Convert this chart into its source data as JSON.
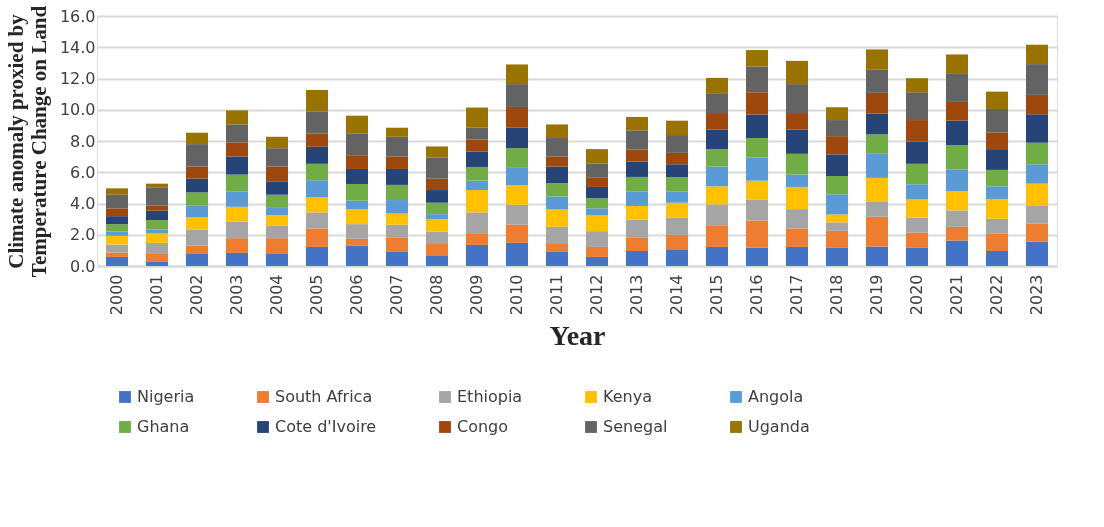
{
  "chart_data": {
    "type": "bar",
    "stacked": true,
    "xlabel": "Year",
    "ylabel": "Climate anomaly proxied by Temperature Change on Land",
    "categories": [
      "2000",
      "2001",
      "2002",
      "2003",
      "2004",
      "2005",
      "2006",
      "2007",
      "2008",
      "2009",
      "2010",
      "2011",
      "2012",
      "2013",
      "2014",
      "2015",
      "2016",
      "2017",
      "2018",
      "2019",
      "2020",
      "2021",
      "2022",
      "2023"
    ],
    "series": [
      {
        "name": "Nigeria",
        "color": "#4472c4",
        "values": [
          0.58,
          0.26,
          0.77,
          0.84,
          0.77,
          1.22,
          1.29,
          0.9,
          0.64,
          1.35,
          1.48,
          0.9,
          0.58,
          0.96,
          1.07,
          1.22,
          1.18,
          1.22,
          1.16,
          1.24,
          1.16,
          1.63,
          0.96,
          1.56
        ]
      },
      {
        "name": "South Africa",
        "color": "#ed7d31",
        "values": [
          0.28,
          0.51,
          0.54,
          0.94,
          1.01,
          1.18,
          0.45,
          0.9,
          0.77,
          0.75,
          1.16,
          0.51,
          0.64,
          0.84,
          0.92,
          1.39,
          1.73,
          1.18,
          1.09,
          1.91,
          0.98,
          0.88,
          1.1,
          1.16
        ]
      },
      {
        "name": "Ethiopia",
        "color": "#a5a5a5",
        "values": [
          0.51,
          0.71,
          1.03,
          1.07,
          0.79,
          1.03,
          0.94,
          0.84,
          0.78,
          1.33,
          1.28,
          1.1,
          1.01,
          1.16,
          1.12,
          1.33,
          1.35,
          1.24,
          0.54,
          0.99,
          0.95,
          1.05,
          0.96,
          1.12
        ]
      },
      {
        "name": "Kenya",
        "color": "#ffc000",
        "values": [
          0.56,
          0.6,
          0.77,
          0.94,
          0.69,
          0.96,
          0.96,
          0.72,
          0.81,
          1.43,
          1.24,
          1.11,
          1.01,
          0.88,
          0.94,
          1.16,
          1.2,
          1.42,
          0.51,
          1.5,
          1.17,
          1.24,
          1.27,
          1.43
        ]
      },
      {
        "name": "Angola",
        "color": "#5b9bd5",
        "values": [
          0.28,
          0.26,
          0.75,
          0.99,
          0.51,
          1.1,
          0.54,
          0.86,
          0.32,
          0.6,
          1.12,
          0.82,
          0.45,
          0.94,
          0.73,
          1.26,
          1.48,
          0.79,
          1.29,
          1.54,
          0.97,
          1.39,
          0.81,
          1.24
        ]
      },
      {
        "name": "Ghana",
        "color": "#70ad47",
        "values": [
          0.47,
          0.6,
          0.85,
          1.07,
          0.79,
          1.05,
          1.07,
          0.97,
          0.73,
          0.88,
          1.26,
          0.87,
          0.64,
          0.92,
          0.9,
          1.12,
          1.25,
          1.33,
          1.17,
          1.24,
          1.31,
          1.55,
          1.05,
          1.38
        ]
      },
      {
        "name": "Cote d'Ivoire",
        "color": "#264478",
        "values": [
          0.51,
          0.6,
          0.88,
          1.16,
          0.86,
          1.09,
          0.96,
          1.02,
          0.81,
          0.99,
          1.33,
          1.05,
          0.73,
          0.99,
          0.83,
          1.26,
          1.5,
          1.56,
          1.38,
          1.33,
          1.43,
          1.56,
          1.33,
          1.82
        ]
      },
      {
        "name": "Congo",
        "color": "#9e480e",
        "values": [
          0.5,
          0.34,
          0.77,
          0.9,
          0.94,
          0.86,
          0.88,
          0.8,
          0.73,
          0.77,
          1.31,
          0.65,
          0.62,
          0.77,
          0.73,
          1.05,
          1.43,
          1.05,
          1.17,
          1.33,
          1.37,
          1.2,
          1.07,
          1.24
        ]
      },
      {
        "name": "Senegal",
        "color": "#636363",
        "values": [
          0.87,
          1.16,
          1.44,
          1.15,
          1.18,
          1.41,
          1.4,
          1.26,
          1.35,
          0.75,
          1.46,
          1.18,
          0.88,
          1.22,
          1.14,
          1.27,
          1.65,
          1.85,
          1.03,
          1.48,
          1.78,
          1.84,
          1.5,
          1.97
        ]
      },
      {
        "name": "Uganda",
        "color": "#997300",
        "values": [
          0.41,
          0.23,
          0.73,
          0.9,
          0.73,
          1.37,
          1.13,
          0.58,
          0.71,
          1.29,
          1.26,
          0.87,
          0.92,
          0.86,
          0.92,
          0.98,
          1.05,
          1.49,
          0.82,
          1.3,
          0.9,
          1.2,
          1.11,
          1.24
        ]
      }
    ],
    "ylim": [
      0,
      16
    ],
    "yticks": [
      {
        "value": 0,
        "label": "0.0"
      },
      {
        "value": 2,
        "label": "2.0"
      },
      {
        "value": 4,
        "label": "4.0"
      },
      {
        "value": 6,
        "label": "6.0"
      },
      {
        "value": 8,
        "label": "8.0"
      },
      {
        "value": 10,
        "label": "10.0"
      },
      {
        "value": 12,
        "label": "12.0"
      },
      {
        "value": 14,
        "label": "14.0"
      },
      {
        "value": 16,
        "label": "16.0"
      }
    ],
    "grid": "y",
    "legend": "bottom"
  }
}
